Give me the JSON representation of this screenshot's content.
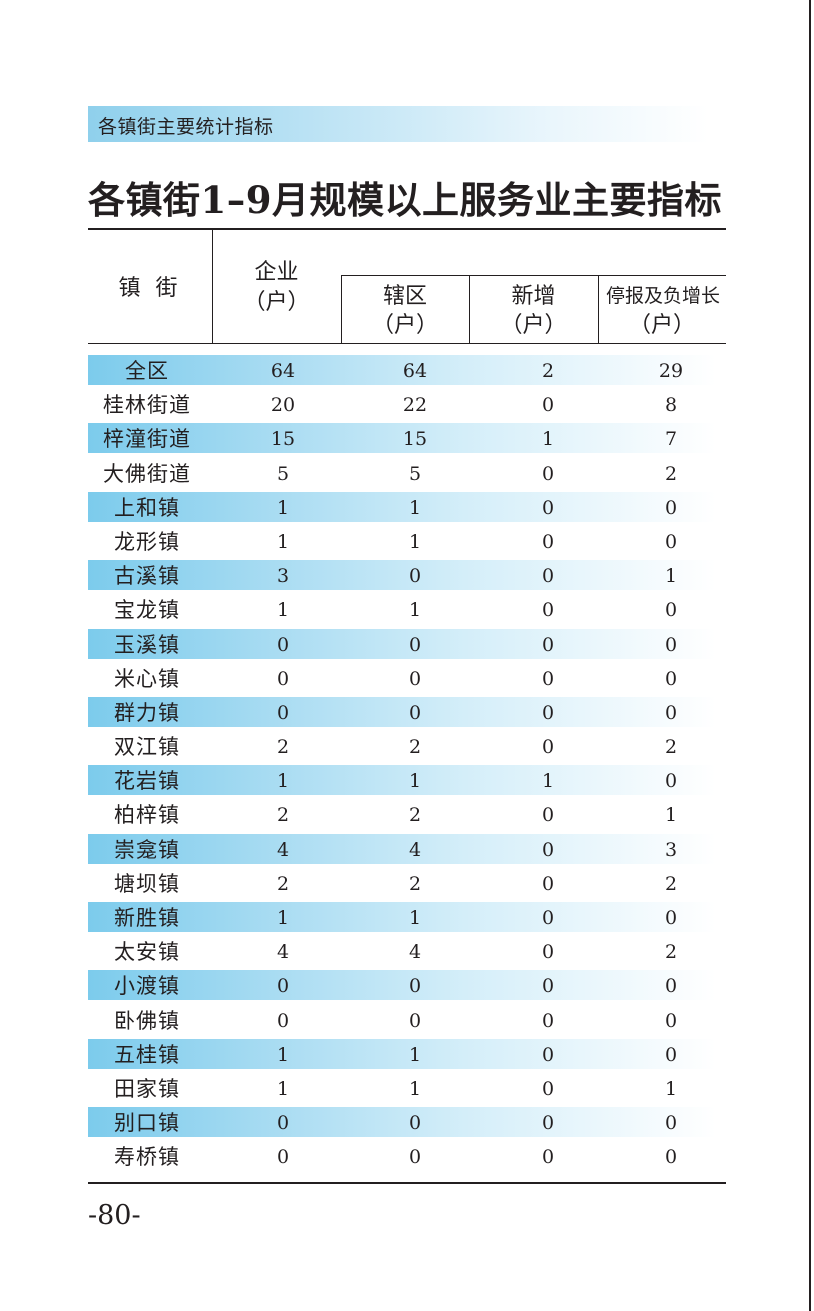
{
  "section_header": "各镇街主要统计指标",
  "title": "各镇街1–9月规模以上服务业主要指标",
  "headers": {
    "town": "镇  街",
    "enterprise": "企业",
    "enterprise_unit": "（户）",
    "district": "辖区",
    "district_unit": "（户）",
    "new_added": "新增",
    "new_added_unit": "（户）",
    "suspended": "停报及负增长",
    "suspended_unit": "（户）"
  },
  "rows": [
    {
      "name": "全区",
      "enterprise": "64",
      "district": "64",
      "new": "2",
      "suspended": "29"
    },
    {
      "name": "桂林街道",
      "enterprise": "20",
      "district": "22",
      "new": "0",
      "suspended": "8"
    },
    {
      "name": "梓潼街道",
      "enterprise": "15",
      "district": "15",
      "new": "1",
      "suspended": "7"
    },
    {
      "name": "大佛街道",
      "enterprise": "5",
      "district": "5",
      "new": "0",
      "suspended": "2"
    },
    {
      "name": "上和镇",
      "enterprise": "1",
      "district": "1",
      "new": "0",
      "suspended": "0"
    },
    {
      "name": "龙形镇",
      "enterprise": "1",
      "district": "1",
      "new": "0",
      "suspended": "0"
    },
    {
      "name": "古溪镇",
      "enterprise": "3",
      "district": "0",
      "new": "0",
      "suspended": "1"
    },
    {
      "name": "宝龙镇",
      "enterprise": "1",
      "district": "1",
      "new": "0",
      "suspended": "0"
    },
    {
      "name": "玉溪镇",
      "enterprise": "0",
      "district": "0",
      "new": "0",
      "suspended": "0"
    },
    {
      "name": "米心镇",
      "enterprise": "0",
      "district": "0",
      "new": "0",
      "suspended": "0"
    },
    {
      "name": "群力镇",
      "enterprise": "0",
      "district": "0",
      "new": "0",
      "suspended": "0"
    },
    {
      "name": "双江镇",
      "enterprise": "2",
      "district": "2",
      "new": "0",
      "suspended": "2"
    },
    {
      "name": "花岩镇",
      "enterprise": "1",
      "district": "1",
      "new": "1",
      "suspended": "0"
    },
    {
      "name": "柏梓镇",
      "enterprise": "2",
      "district": "2",
      "new": "0",
      "suspended": "1"
    },
    {
      "name": "崇龛镇",
      "enterprise": "4",
      "district": "4",
      "new": "0",
      "suspended": "3"
    },
    {
      "name": "塘坝镇",
      "enterprise": "2",
      "district": "2",
      "new": "0",
      "suspended": "2"
    },
    {
      "name": "新胜镇",
      "enterprise": "1",
      "district": "1",
      "new": "0",
      "suspended": "0"
    },
    {
      "name": "太安镇",
      "enterprise": "4",
      "district": "4",
      "new": "0",
      "suspended": "2"
    },
    {
      "name": "小渡镇",
      "enterprise": "0",
      "district": "0",
      "new": "0",
      "suspended": "0"
    },
    {
      "name": "卧佛镇",
      "enterprise": "0",
      "district": "0",
      "new": "0",
      "suspended": "0"
    },
    {
      "name": "五桂镇",
      "enterprise": "1",
      "district": "1",
      "new": "0",
      "suspended": "0"
    },
    {
      "name": "田家镇",
      "enterprise": "1",
      "district": "1",
      "new": "0",
      "suspended": "1"
    },
    {
      "name": "别口镇",
      "enterprise": "0",
      "district": "0",
      "new": "0",
      "suspended": "0"
    },
    {
      "name": "寿桥镇",
      "enterprise": "0",
      "district": "0",
      "new": "0",
      "suspended": "0"
    }
  ],
  "page_number": "-80-",
  "colors": {
    "highlight_row": "#7ccbec",
    "banner": "#8fd0ec",
    "text": "#231f20"
  }
}
